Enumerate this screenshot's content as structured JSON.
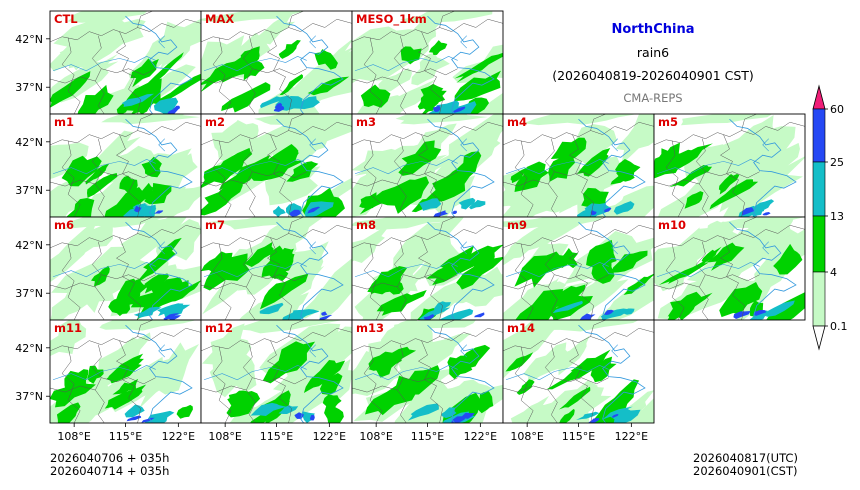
{
  "header": {
    "region": "NorthChina",
    "variable": "rain6",
    "period": "(2026040819-2026040901 CST)",
    "model": "CMA-REPS"
  },
  "colors": {
    "region_title": "#0000dd",
    "panel_label": "#dd0000",
    "model_label": "#777777",
    "levels": [
      "#ffffff",
      "#c6fac6",
      "#00d200",
      "#14bec8",
      "#2548f4",
      "#f01e78"
    ],
    "province_line": "#555555",
    "river_line": "#3399dd"
  },
  "panels": [
    {
      "label": "CTL",
      "seed": 11
    },
    {
      "label": "MAX",
      "seed": 23
    },
    {
      "label": "MESO_1km",
      "seed": 37
    },
    {
      "label": "m1",
      "seed": 41
    },
    {
      "label": "m2",
      "seed": 53
    },
    {
      "label": "m3",
      "seed": 67
    },
    {
      "label": "m4",
      "seed": 71
    },
    {
      "label": "m5",
      "seed": 83
    },
    {
      "label": "m6",
      "seed": 97
    },
    {
      "label": "m7",
      "seed": 101
    },
    {
      "label": "m8",
      "seed": 113
    },
    {
      "label": "m9",
      "seed": 127
    },
    {
      "label": "m10",
      "seed": 131
    },
    {
      "label": "m11",
      "seed": 149
    },
    {
      "label": "m12",
      "seed": 151
    },
    {
      "label": "m13",
      "seed": 163
    },
    {
      "label": "m14",
      "seed": 173
    }
  ],
  "axes": {
    "lat_ticks": [
      "42°N",
      "37°N"
    ],
    "lon_ticks": [
      "108°E",
      "115°E",
      "122°E"
    ]
  },
  "colorbar": {
    "levels": [
      "60",
      "25",
      "13",
      "4",
      "0.1"
    ]
  },
  "footer": {
    "init_line1": "2026040706  +  035h",
    "init_line2": "2026040714  +  035h",
    "valid_utc": "2026040817(UTC)",
    "valid_cst": "2026040901(CST)"
  }
}
